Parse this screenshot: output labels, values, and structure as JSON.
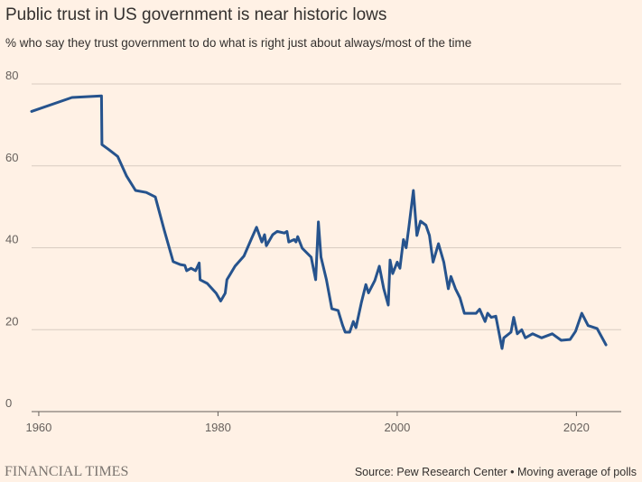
{
  "chart_data": {
    "type": "line",
    "title": "Public trust in US government is near historic lows",
    "subtitle": "% who say they trust government to do what is right just about always/most of the time",
    "brand": "FINANCIAL TIMES",
    "source": "Source: Pew Research Center • Moving average of polls",
    "xlim": [
      1959.2,
      2025
    ],
    "xticks": [
      1960,
      1980,
      2000,
      2020
    ],
    "ylim": [
      0,
      80
    ],
    "yticks": [
      0,
      20,
      40,
      60,
      80
    ],
    "grid": true,
    "x": [
      1959.2,
      1963.7,
      1967,
      1967.05,
      1967.8,
      1968.8,
      1969.8,
      1970.8,
      1972,
      1973,
      1974,
      1975,
      1975.8,
      1976.3,
      1976.5,
      1977,
      1977.5,
      1977.9,
      1978,
      1978.8,
      1979.8,
      1980.3,
      1980.8,
      1981,
      1981.9,
      1982.9,
      1983.7,
      1984.3,
      1984.9,
      1985.2,
      1985.4,
      1986.1,
      1986.6,
      1987.4,
      1987.7,
      1987.9,
      1988.5,
      1988.7,
      1988.9,
      1989.4,
      1990.4,
      1990.9,
      1991.2,
      1991.5,
      1992.1,
      1992.7,
      1993.4,
      1993.9,
      1994.2,
      1994.7,
      1995.1,
      1995.4,
      1996,
      1996.5,
      1996.8,
      1997.5,
      1998,
      1998.5,
      1999,
      1999.2,
      1999.5,
      2000,
      2000.3,
      2000.7,
      2001,
      2001.3,
      2001.8,
      2002.2,
      2002.6,
      2003.2,
      2003.6,
      2004,
      2004.6,
      2005.2,
      2005.7,
      2006,
      2006.5,
      2007,
      2007.5,
      2008.8,
      2009.2,
      2009.8,
      2010.1,
      2010.5,
      2011,
      2011.7,
      2011.9,
      2012.7,
      2013,
      2013.4,
      2013.9,
      2014.3,
      2015.1,
      2016.1,
      2017.3,
      2018.3,
      2019.3,
      2019.9,
      2020.6,
      2021.3,
      2022.3,
      2023.3
    ],
    "series": [
      {
        "color": "#26538d",
        "values": [
          73.3,
          76.7,
          77.1,
          65.2,
          64,
          62.3,
          57.5,
          54,
          53.5,
          52.4,
          44.3,
          36.6,
          35.9,
          35.7,
          34.4,
          35,
          34.4,
          36.3,
          32.2,
          31.3,
          28.9,
          27,
          28.9,
          32.2,
          35.5,
          38,
          42,
          45,
          41.4,
          43.2,
          40.5,
          43.2,
          44,
          43.6,
          44,
          41.4,
          42,
          41.4,
          42.7,
          39.9,
          37.7,
          32.2,
          46.3,
          37.7,
          32.2,
          25.1,
          24.7,
          21.1,
          19.4,
          19.4,
          22,
          20.5,
          26.6,
          31,
          29,
          32,
          35.5,
          30,
          26,
          37,
          33.7,
          36.5,
          35,
          42,
          40,
          45,
          54,
          43,
          46.5,
          45.5,
          43,
          36.5,
          41,
          36.5,
          30,
          33,
          30,
          27.8,
          24,
          24,
          25,
          22,
          24,
          23,
          23.3,
          15.4,
          18,
          19.4,
          23,
          19,
          20,
          18,
          19,
          18,
          19,
          17.4,
          17.6,
          19.6,
          24,
          21,
          20.3,
          16.3
        ]
      }
    ]
  }
}
